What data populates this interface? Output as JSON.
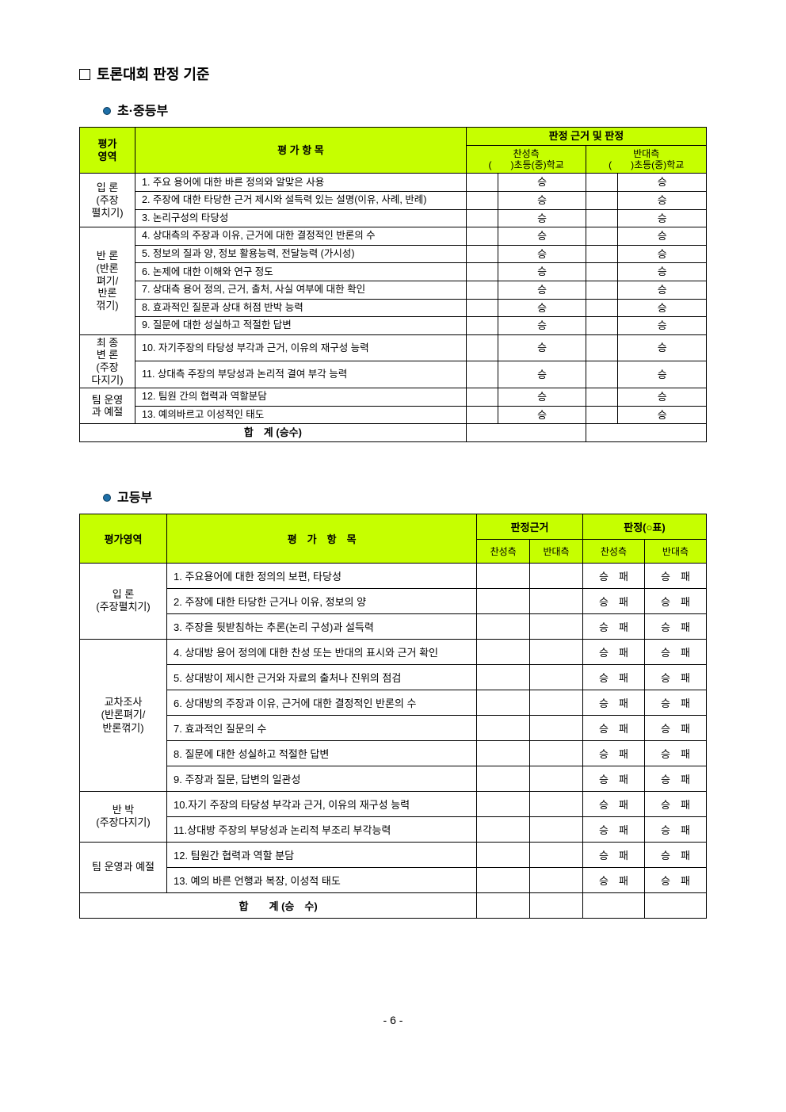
{
  "title": "토론대회 판정 기준",
  "sub1": "초·중등부",
  "sub2": "고등부",
  "page_num": "- 6 -",
  "colors": {
    "header_bg": "#c6ff00",
    "border": "#000000",
    "bullet": "#1e6fa8"
  },
  "table1": {
    "col_area": "평가\n영역",
    "col_item": "평 가 항 목",
    "col_judge_group": "판정 근거 및 판정",
    "col_for": "찬성측",
    "col_for_sub": "(　　)초등(중)학교",
    "col_against": "반대측",
    "col_against_sub": "(　　)초등(중)학교",
    "win": "승",
    "total": "합　계 (승수)",
    "rows": [
      {
        "cat": "입 론\n(주장\n펼치기)",
        "span": 3,
        "items": [
          "1. 주요 용어에 대한 바른 정의와 알맞은 사용",
          "2. 주장에 대한 타당한 근거 제시와 설득력 있는 설명(이유, 사례, 반례)",
          "3. 논리구성의 타당성"
        ]
      },
      {
        "cat": "반 론\n(반론\n펴기/\n반론\n꺾기)",
        "span": 6,
        "items": [
          "4. 상대측의 주장과 이유, 근거에 대한 결정적인 반론의 수",
          "5. 정보의 질과 양, 정보 활용능력, 전달능력 (가시성)",
          "6. 논제에 대한 이해와 연구 정도",
          "7. 상대측 용어 정의, 근거, 출처, 사실 여부에 대한 확인",
          "8. 효과적인 질문과 상대 허점 반박 능력",
          "9. 질문에 대한 성실하고 적절한 답변"
        ]
      },
      {
        "cat": "최 종\n변 론\n(주장\n다지기)",
        "span": 2,
        "items": [
          "10. 자기주장의 타당성 부각과 근거, 이유의 재구성 능력",
          "11. 상대측 주장의 부당성과 논리적 결여 부각 능력"
        ]
      },
      {
        "cat": "팀 운영\n과 예절",
        "span": 2,
        "items": [
          "12. 팀원 간의 협력과 역할분담",
          "13. 예의바르고 이성적인 태도"
        ]
      }
    ]
  },
  "table2": {
    "col_area": "평가영역",
    "col_item": "평　가　항　목",
    "col_basis": "판정근거",
    "col_judge": "판정(○표)",
    "col_for": "찬성측",
    "col_against": "반대측",
    "winlose": "승　패",
    "total": "합　　계 (승　수)",
    "rows": [
      {
        "cat": "입 론\n(주장펼치기)",
        "span": 3,
        "items": [
          "1. 주요용어에 대한 정의의 보편, 타당성",
          "2. 주장에 대한 타당한 근거나 이유, 정보의 양",
          "3. 주장을 뒷받침하는 추론(논리 구성)과 설득력"
        ]
      },
      {
        "cat": "교차조사\n(반론펴기/\n반론꺾기)",
        "span": 6,
        "items": [
          "4. 상대방 용어 정의에 대한 찬성 또는 반대의 표시와 근거 확인",
          "5. 상대방이 제시한 근거와 자료의 출처나 진위의 점검",
          "6. 상대방의 주장과 이유, 근거에 대한 결정적인 반론의 수",
          "7. 효과적인 질문의 수",
          "8. 질문에 대한 성실하고 적절한 답변",
          "9. 주장과 질문, 답변의 일관성"
        ]
      },
      {
        "cat": "반 박\n(주장다지기)",
        "span": 2,
        "items": [
          "10.자기 주장의 타당성 부각과 근거, 이유의 재구성 능력",
          "11.상대방 주장의 부당성과 논리적 부조리 부각능력"
        ]
      },
      {
        "cat": "팀 운영과 예절",
        "span": 2,
        "items": [
          "12. 팀원간 협력과 역할 분담",
          "13. 예의 바른 언행과 복장, 이성적 태도"
        ]
      }
    ]
  }
}
